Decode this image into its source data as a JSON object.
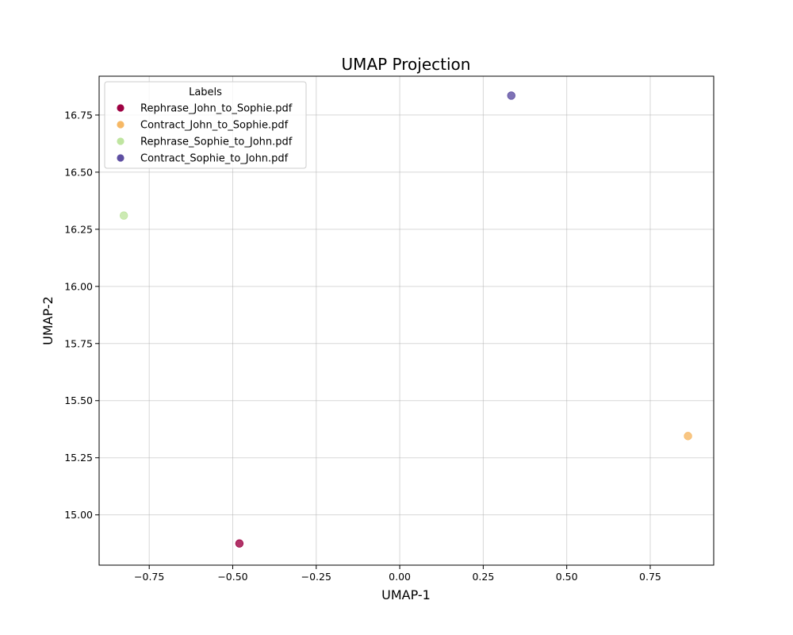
{
  "chart_data": {
    "type": "scatter",
    "title": "UMAP Projection",
    "xlabel": "UMAP-1",
    "ylabel": "UMAP-2",
    "xlim": [
      -0.9,
      0.94
    ],
    "ylim": [
      14.78,
      16.92
    ],
    "xticks": [
      -0.75,
      -0.5,
      -0.25,
      0.0,
      0.25,
      0.5,
      0.75
    ],
    "xtick_labels": [
      "−0.75",
      "−0.50",
      "−0.25",
      "0.00",
      "0.25",
      "0.50",
      "0.75"
    ],
    "yticks": [
      15.0,
      15.25,
      15.5,
      15.75,
      16.0,
      16.25,
      16.5,
      16.75
    ],
    "ytick_labels": [
      "15.00",
      "15.25",
      "15.50",
      "15.75",
      "16.00",
      "16.25",
      "16.50",
      "16.75"
    ],
    "grid": true,
    "legend": {
      "title": "Labels",
      "placement": "top-left"
    },
    "series": [
      {
        "name": "Rephrase_John_to_Sophie.pdf",
        "color": "#9e0142",
        "points": [
          {
            "x": -0.48,
            "y": 14.875
          }
        ]
      },
      {
        "name": "Contract_John_to_Sophie.pdf",
        "color": "#f6b865",
        "points": [
          {
            "x": 0.863,
            "y": 15.345
          }
        ]
      },
      {
        "name": "Rephrase_Sophie_to_John.pdf",
        "color": "#bfe5a0",
        "points": [
          {
            "x": -0.826,
            "y": 16.31
          }
        ]
      },
      {
        "name": "Contract_Sophie_to_John.pdf",
        "color": "#5e4fa2",
        "points": [
          {
            "x": 0.334,
            "y": 16.835
          }
        ]
      }
    ]
  }
}
